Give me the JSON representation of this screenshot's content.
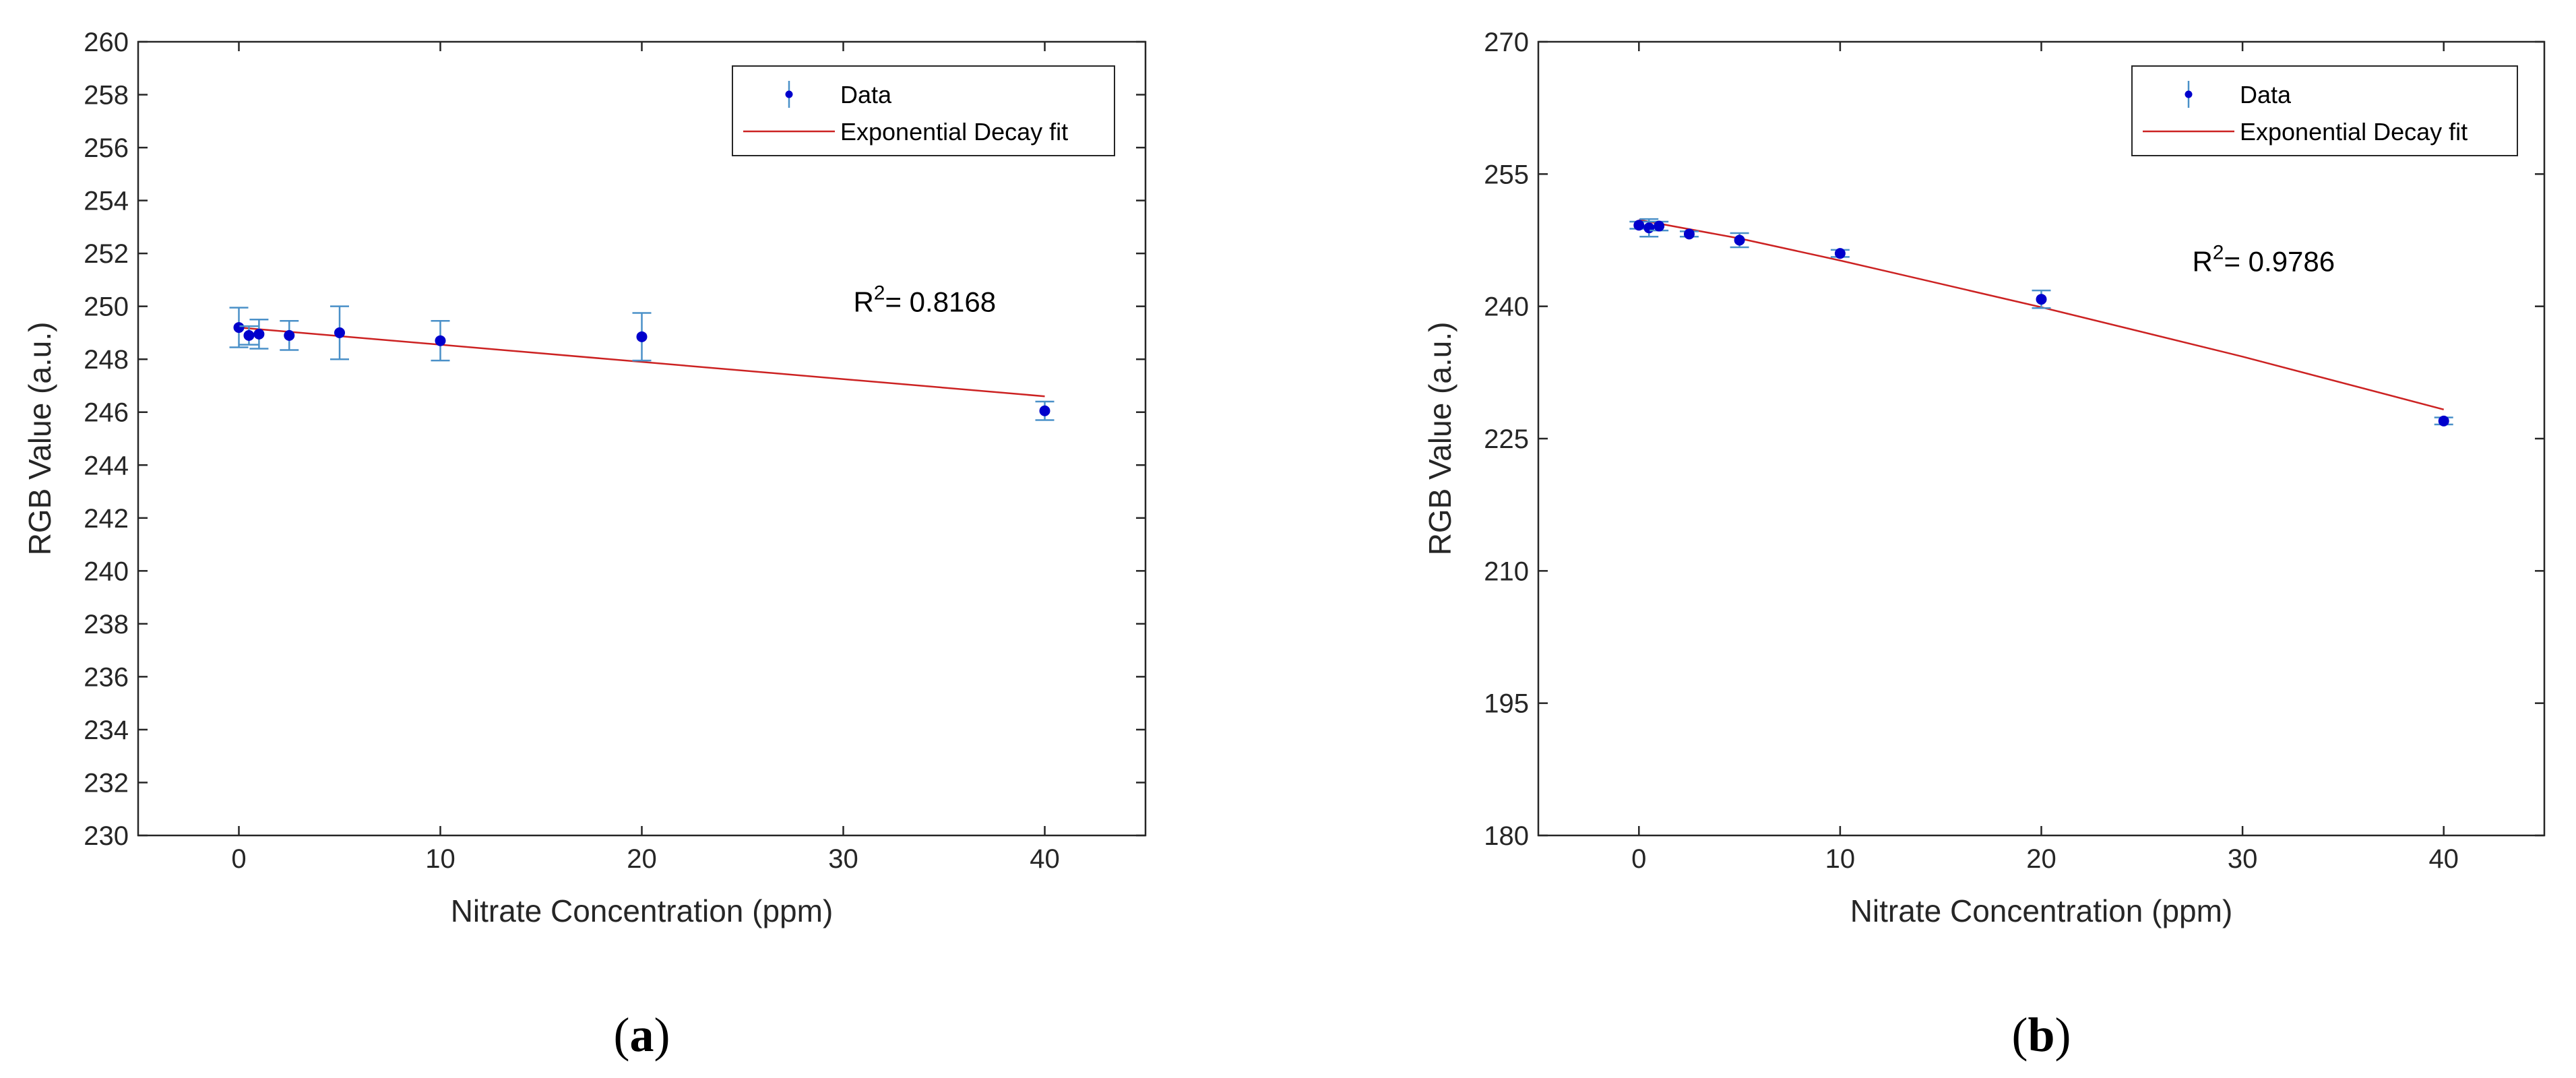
{
  "chart_data": [
    {
      "type": "scatter",
      "panel": "(a)",
      "caption_letter": "a",
      "xlabel": "Nitrate Concentration (ppm)",
      "ylabel": "RGB Value (a.u.)",
      "xlim": [
        -5,
        45
      ],
      "ylim": [
        230,
        260
      ],
      "xticks": [
        0,
        10,
        20,
        30,
        40
      ],
      "yticks": [
        230,
        232,
        234,
        236,
        238,
        240,
        242,
        244,
        246,
        248,
        250,
        252,
        254,
        256,
        258,
        260
      ],
      "legend_position": "top-right",
      "grid": false,
      "series": [
        {
          "name": "Data",
          "kind": "errorbar",
          "color": "#0000cc",
          "error_color": "#4a90c8",
          "x": [
            0,
            0.5,
            1,
            2.5,
            5,
            10,
            20,
            40
          ],
          "y": [
            249.2,
            248.9,
            248.95,
            248.9,
            249.0,
            248.7,
            248.85,
            246.05
          ],
          "err": [
            0.75,
            0.35,
            0.55,
            0.55,
            1.0,
            0.75,
            0.9,
            0.35
          ]
        },
        {
          "name": "Exponential Decay fit",
          "kind": "line",
          "color": "#cc2222",
          "x": [
            0,
            40
          ],
          "y": [
            249.2,
            246.6
          ]
        }
      ],
      "annotation": {
        "prefix": "R",
        "sup": "2",
        "text": "= 0.8168",
        "x": 30.5,
        "y": 249.8
      }
    },
    {
      "type": "scatter",
      "panel": "(b)",
      "caption_letter": "b",
      "xlabel": "Nitrate Concentration (ppm)",
      "ylabel": "RGB Value (a.u.)",
      "xlim": [
        -5,
        45
      ],
      "ylim": [
        180,
        270
      ],
      "xticks": [
        0,
        10,
        20,
        30,
        40
      ],
      "yticks": [
        180,
        195,
        210,
        225,
        240,
        255,
        270
      ],
      "legend_position": "top-right",
      "grid": false,
      "series": [
        {
          "name": "Data",
          "kind": "errorbar",
          "color": "#0000cc",
          "error_color": "#4a90c8",
          "x": [
            0,
            0.5,
            1,
            2.5,
            5,
            10,
            20,
            40
          ],
          "y": [
            249.2,
            248.9,
            249.1,
            248.2,
            247.5,
            246.0,
            240.8,
            227.0
          ],
          "err": [
            0.4,
            1.0,
            0.5,
            0.3,
            0.8,
            0.4,
            1.0,
            0.4
          ]
        },
        {
          "name": "Exponential Decay fit",
          "kind": "line",
          "color": "#cc2222",
          "x": [
            0,
            5,
            10,
            20,
            30,
            40
          ],
          "y": [
            249.8,
            247.7,
            245.2,
            239.9,
            234.3,
            228.3
          ]
        }
      ],
      "annotation": {
        "prefix": "R",
        "sup": "2",
        "text": "= 0.9786",
        "x": 27.5,
        "y": 244.0
      }
    }
  ]
}
